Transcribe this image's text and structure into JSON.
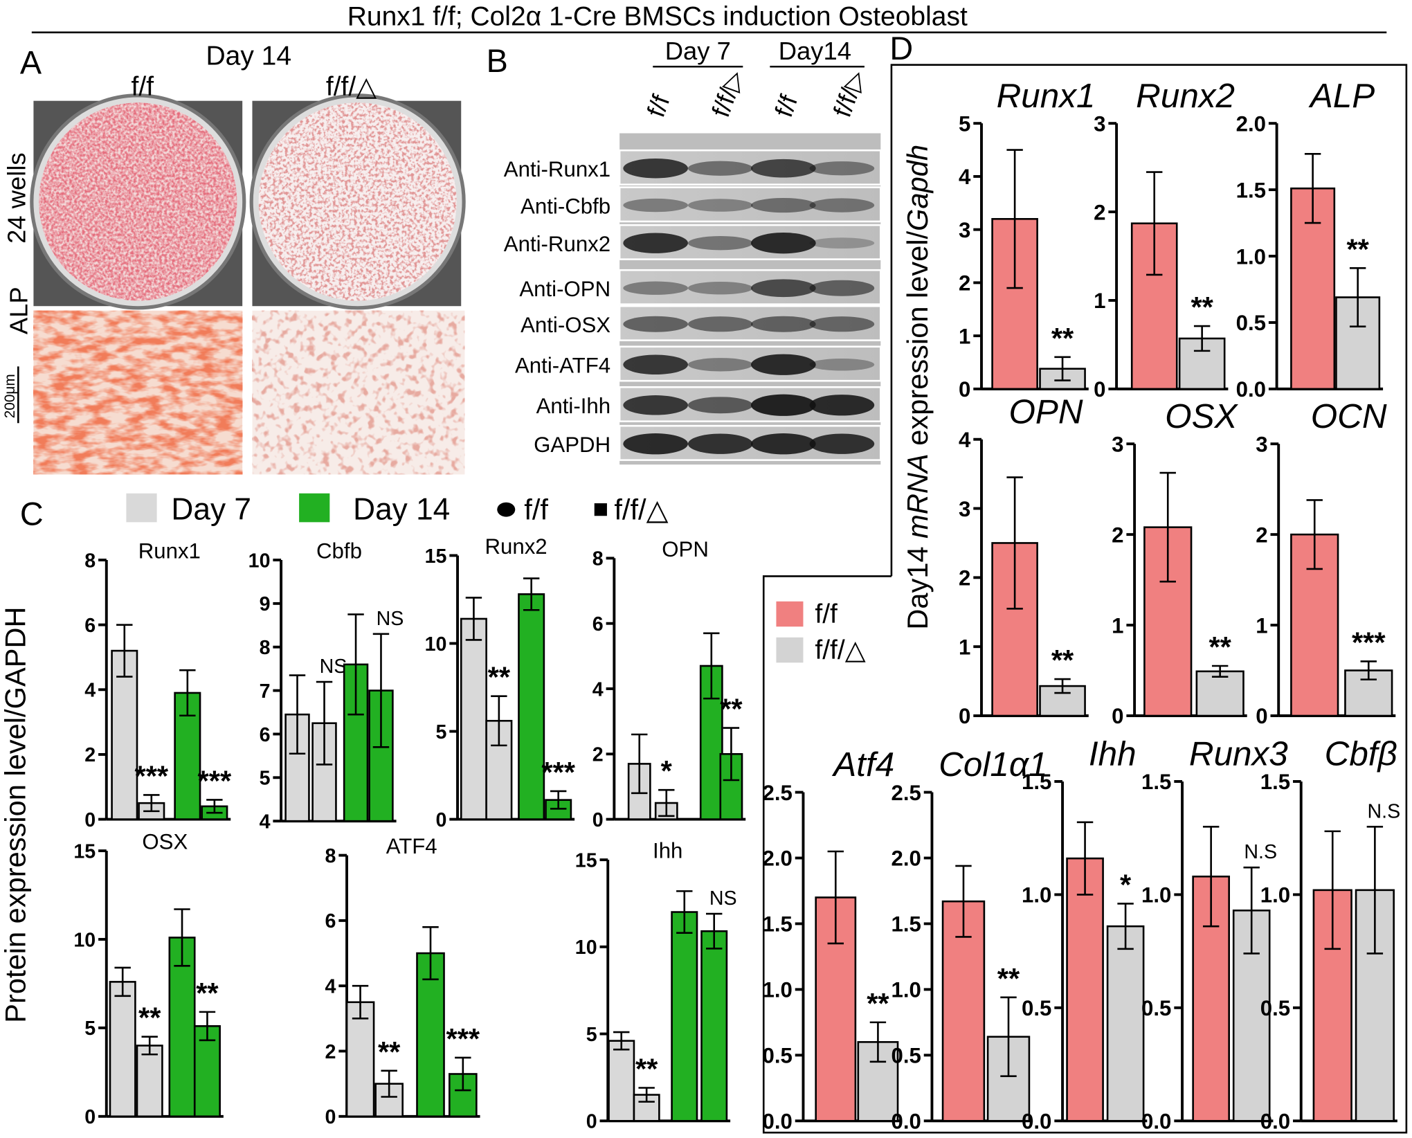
{
  "title": "Runx1 f/f; Col2α 1-Cre BMSCs induction Osteoblast",
  "panel_labels": [
    "A",
    "B",
    "C",
    "D"
  ],
  "panel_a": {
    "day": "Day 14",
    "columns": [
      "f/f",
      "f/f/△"
    ],
    "rows": [
      "24 wells",
      "ALP"
    ],
    "scale_bar": "200μm"
  },
  "panel_b": {
    "groups": [
      "Day 7",
      "Day14"
    ],
    "lanes": [
      "f/f",
      "f/f/▷",
      "f/f",
      "f/f/▷"
    ],
    "bands": [
      "Anti-Runx1",
      "Anti-Cbfb",
      "Anti-Runx2",
      "Anti-OPN",
      "Anti-OSX",
      "Anti-ATF4",
      "Anti-Ihh",
      "GAPDH"
    ]
  },
  "panel_c": {
    "ylabel": "Protein expression level/GAPDH",
    "marker_legend": [
      "f/f",
      "f/f/△"
    ]
  },
  "panel_d": {
    "ylabel": [
      "Day14 ",
      "mRNA",
      " expression level/",
      "Gapdh"
    ]
  },
  "chart_data": [
    {
      "type": "bar",
      "title": "Runx1",
      "ylim": [
        0,
        8
      ],
      "yticks": [
        0,
        2,
        4,
        6,
        8
      ],
      "series": [
        {
          "name": "Day 7",
          "color": "#d9d9d9",
          "values": [
            5.2,
            0.5
          ],
          "errors": [
            0.8,
            0.25
          ]
        },
        {
          "name": "Day 14",
          "color": "#22b022",
          "values": [
            3.9,
            0.4
          ],
          "errors": [
            0.7,
            0.2
          ]
        }
      ],
      "significance": [
        null,
        "***",
        null,
        "***"
      ]
    },
    {
      "type": "bar",
      "title": "Cbfb",
      "ylim": [
        4,
        10
      ],
      "yticks": [
        4,
        5,
        6,
        7,
        8,
        9,
        10
      ],
      "series": [
        {
          "name": "Day 7",
          "color": "#d9d9d9",
          "values": [
            6.45,
            6.25
          ],
          "errors": [
            0.9,
            0.95
          ]
        },
        {
          "name": "Day 14",
          "color": "#22b022",
          "values": [
            7.6,
            7.0
          ],
          "errors": [
            1.15,
            1.3
          ]
        }
      ],
      "significance": [
        null,
        "NS",
        null,
        "NS"
      ]
    },
    {
      "type": "bar",
      "title": "Runx2",
      "ylim": [
        0,
        15
      ],
      "yticks": [
        0,
        5,
        10,
        15
      ],
      "series": [
        {
          "name": "Day 7",
          "color": "#d9d9d9",
          "values": [
            11.4,
            5.6
          ],
          "errors": [
            1.2,
            1.4
          ]
        },
        {
          "name": "Day 14",
          "color": "#22b022",
          "values": [
            12.8,
            1.1
          ],
          "errors": [
            0.9,
            0.5
          ]
        }
      ],
      "significance": [
        null,
        "**",
        null,
        "***"
      ]
    },
    {
      "type": "bar",
      "title": "OPN",
      "ylim": [
        0,
        8
      ],
      "yticks": [
        0,
        2,
        4,
        6,
        8
      ],
      "series": [
        {
          "name": "Day 7",
          "color": "#d9d9d9",
          "values": [
            1.7,
            0.5
          ],
          "errors": [
            0.9,
            0.4
          ]
        },
        {
          "name": "Day 14",
          "color": "#22b022",
          "values": [
            4.7,
            2.0
          ],
          "errors": [
            1.0,
            0.8
          ]
        }
      ],
      "significance": [
        null,
        "*",
        null,
        "**"
      ]
    },
    {
      "type": "bar",
      "title": "OSX",
      "ylim": [
        0,
        15
      ],
      "yticks": [
        0,
        5,
        10,
        15
      ],
      "series": [
        {
          "name": "Day 7",
          "color": "#d9d9d9",
          "values": [
            7.6,
            4.0
          ],
          "errors": [
            0.8,
            0.5
          ]
        },
        {
          "name": "Day 14",
          "color": "#22b022",
          "values": [
            10.1,
            5.1
          ],
          "errors": [
            1.6,
            0.8
          ]
        }
      ],
      "significance": [
        null,
        "**",
        null,
        "**"
      ]
    },
    {
      "type": "bar",
      "title": "ATF4",
      "ylim": [
        0,
        8
      ],
      "yticks": [
        0,
        2,
        4,
        6,
        8
      ],
      "series": [
        {
          "name": "Day 7",
          "color": "#d9d9d9",
          "values": [
            3.5,
            1.0
          ],
          "errors": [
            0.5,
            0.4
          ]
        },
        {
          "name": "Day 14",
          "color": "#22b022",
          "values": [
            5.0,
            1.3
          ],
          "errors": [
            0.8,
            0.5
          ]
        }
      ],
      "significance": [
        null,
        "**",
        null,
        "***"
      ]
    },
    {
      "type": "bar",
      "title": "Ihh",
      "ylim": [
        0,
        15
      ],
      "yticks": [
        0,
        5,
        10,
        15
      ],
      "series": [
        {
          "name": "Day 7",
          "color": "#d9d9d9",
          "values": [
            4.6,
            1.5
          ],
          "errors": [
            0.5,
            0.4
          ]
        },
        {
          "name": "Day 14",
          "color": "#22b022",
          "values": [
            12.0,
            10.9
          ],
          "errors": [
            1.2,
            1.0
          ]
        }
      ],
      "significance": [
        null,
        "**",
        null,
        "NS"
      ]
    },
    {
      "type": "bar",
      "title": "Runx1",
      "ylim": [
        0,
        5
      ],
      "yticks": [
        0,
        1,
        2,
        3,
        4,
        5
      ],
      "series": [
        {
          "name": "f/f",
          "color": "#f08080",
          "values": [
            3.2
          ],
          "errors": [
            1.3
          ]
        },
        {
          "name": "f/f/△",
          "color": "#d3d3d3",
          "values": [
            0.38
          ],
          "errors": [
            0.22
          ]
        }
      ],
      "significance": [
        null,
        "**"
      ]
    },
    {
      "type": "bar",
      "title": "Runx2",
      "ylim": [
        0,
        3
      ],
      "yticks": [
        0,
        1,
        2,
        3
      ],
      "series": [
        {
          "name": "f/f",
          "color": "#f08080",
          "values": [
            1.87
          ],
          "errors": [
            0.58
          ]
        },
        {
          "name": "f/f/△",
          "color": "#d3d3d3",
          "values": [
            0.57
          ],
          "errors": [
            0.14
          ]
        }
      ],
      "significance": [
        null,
        "**"
      ]
    },
    {
      "type": "bar",
      "title": "ALP",
      "ylim": [
        0,
        2
      ],
      "yticks": [
        {
          "value": 0,
          "label": "0.0"
        },
        0.5,
        {
          "value": 1,
          "label": "1.0"
        },
        1.5,
        {
          "value": 2,
          "label": "2.0"
        }
      ],
      "series": [
        {
          "name": "f/f",
          "color": "#f08080",
          "values": [
            1.51
          ],
          "errors": [
            0.26
          ]
        },
        {
          "name": "f/f/△",
          "color": "#d3d3d3",
          "values": [
            0.69
          ],
          "errors": [
            0.22
          ]
        }
      ],
      "significance": [
        null,
        "**"
      ]
    },
    {
      "type": "bar",
      "title": "OPN",
      "ylim": [
        0,
        4
      ],
      "yticks": [
        0,
        1,
        2,
        3,
        4
      ],
      "series": [
        {
          "name": "f/f",
          "color": "#f08080",
          "values": [
            2.5
          ],
          "errors": [
            0.95
          ]
        },
        {
          "name": "f/f/△",
          "color": "#d3d3d3",
          "values": [
            0.43
          ],
          "errors": [
            0.1
          ]
        }
      ],
      "significance": [
        null,
        "**"
      ]
    },
    {
      "type": "bar",
      "title": "OSX",
      "ylim": [
        0,
        3
      ],
      "yticks": [
        0,
        1,
        2,
        3
      ],
      "series": [
        {
          "name": "f/f",
          "color": "#f08080",
          "values": [
            2.08
          ],
          "errors": [
            0.6
          ]
        },
        {
          "name": "f/f/△",
          "color": "#d3d3d3",
          "values": [
            0.49
          ],
          "errors": [
            0.06
          ]
        }
      ],
      "significance": [
        null,
        "**"
      ]
    },
    {
      "type": "bar",
      "title": "OCN",
      "ylim": [
        0,
        3
      ],
      "yticks": [
        0,
        1,
        2,
        3
      ],
      "series": [
        {
          "name": "f/f",
          "color": "#f08080",
          "values": [
            2.0
          ],
          "errors": [
            0.38
          ]
        },
        {
          "name": "f/f/△",
          "color": "#d3d3d3",
          "values": [
            0.5
          ],
          "errors": [
            0.1
          ]
        }
      ],
      "significance": [
        null,
        "***"
      ]
    },
    {
      "type": "bar",
      "title": "Atf4",
      "ylim": [
        0,
        2.5
      ],
      "yticks": [
        {
          "value": 0,
          "label": "0.0"
        },
        0.5,
        {
          "value": 1,
          "label": "1.0"
        },
        1.5,
        {
          "value": 2,
          "label": "2.0"
        },
        2.5
      ],
      "series": [
        {
          "name": "f/f",
          "color": "#f08080",
          "values": [
            1.7
          ],
          "errors": [
            0.35
          ]
        },
        {
          "name": "f/f/△",
          "color": "#d3d3d3",
          "values": [
            0.6
          ],
          "errors": [
            0.15
          ]
        }
      ],
      "significance": [
        null,
        "**"
      ]
    },
    {
      "type": "bar",
      "title": "Col1α1",
      "ylim": [
        0,
        2.5
      ],
      "yticks": [
        {
          "value": 0,
          "label": "0.0"
        },
        0.5,
        {
          "value": 1,
          "label": "1.0"
        },
        1.5,
        {
          "value": 2,
          "label": "2.0"
        },
        2.5
      ],
      "series": [
        {
          "name": "f/f",
          "color": "#f08080",
          "values": [
            1.67
          ],
          "errors": [
            0.27
          ]
        },
        {
          "name": "f/f/△",
          "color": "#d3d3d3",
          "values": [
            0.64
          ],
          "errors": [
            0.3
          ]
        }
      ],
      "significance": [
        null,
        "**"
      ]
    },
    {
      "type": "bar",
      "title": "Ihh",
      "ylim": [
        0,
        1.5
      ],
      "yticks": [
        {
          "value": 0,
          "label": "0.0"
        },
        0.5,
        {
          "value": 1,
          "label": "1.0"
        },
        1.5
      ],
      "series": [
        {
          "name": "f/f",
          "color": "#f08080",
          "values": [
            1.16
          ],
          "errors": [
            0.16
          ]
        },
        {
          "name": "f/f/△",
          "color": "#d3d3d3",
          "values": [
            0.86
          ],
          "errors": [
            0.1
          ]
        }
      ],
      "significance": [
        null,
        "*"
      ]
    },
    {
      "type": "bar",
      "title": "Runx3",
      "ylim": [
        0,
        1.5
      ],
      "yticks": [
        {
          "value": 0,
          "label": "0.0"
        },
        0.5,
        {
          "value": 1,
          "label": "1.0"
        },
        1.5
      ],
      "series": [
        {
          "name": "f/f",
          "color": "#f08080",
          "values": [
            1.08
          ],
          "errors": [
            0.22
          ]
        },
        {
          "name": "f/f/△",
          "color": "#d3d3d3",
          "values": [
            0.93
          ],
          "errors": [
            0.19
          ]
        }
      ],
      "significance": [
        null,
        "N.S"
      ]
    },
    {
      "type": "bar",
      "title": "Cbfβ",
      "ylim": [
        0,
        1.5
      ],
      "yticks": [
        {
          "value": 0,
          "label": "0.0"
        },
        0.5,
        {
          "value": 1,
          "label": "1.0"
        },
        1.5
      ],
      "series": [
        {
          "name": "f/f",
          "color": "#f08080",
          "values": [
            1.02
          ],
          "errors": [
            0.26
          ]
        },
        {
          "name": "f/f/△",
          "color": "#d3d3d3",
          "values": [
            1.02
          ],
          "errors": [
            0.28
          ]
        }
      ],
      "significance": [
        null,
        "N.S"
      ]
    }
  ]
}
